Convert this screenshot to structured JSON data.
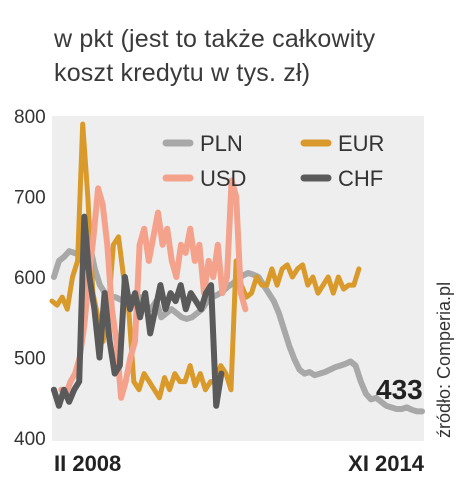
{
  "title": {
    "line1": "w pkt (jest to także całkowity",
    "line2": "koszt kredytu w tys. zł)"
  },
  "source": "źródło: Comperia.pl",
  "end_value_label": "433",
  "chart_data": {
    "type": "line",
    "title": "w pkt (jest to także całkowity koszt kredytu w tys. zł)",
    "xlabel": "",
    "ylabel": "",
    "ylim": [
      400,
      800
    ],
    "yticks": [
      "800",
      "700",
      "600",
      "500",
      "400"
    ],
    "x_start_label": "II 2008",
    "x_end_label": "XI 2014",
    "grid": false,
    "legend_position": "top-right",
    "colors": {
      "PLN": "#a8a8a8",
      "USD": "#f4a28c",
      "EUR": "#d99a2b",
      "CHF": "#5a5a5a",
      "panel": "#eeeeee"
    },
    "series": [
      {
        "name": "PLN",
        "values": [
          600,
          620,
          625,
          632,
          630,
          628,
          660,
          640,
          610,
          590,
          580,
          575,
          575,
          572,
          570,
          575,
          570,
          575,
          565,
          560,
          570,
          550,
          555,
          560,
          555,
          550,
          548,
          550,
          555,
          560,
          570,
          575,
          578,
          582,
          588,
          592,
          598,
          602,
          605,
          603,
          600,
          590,
          580,
          570,
          555,
          535,
          515,
          498,
          485,
          480,
          482,
          478,
          480,
          482,
          485,
          488,
          490,
          492,
          495,
          490,
          470,
          455,
          448,
          450,
          445,
          440,
          438,
          436,
          436,
          438,
          435,
          433,
          433
        ],
        "end_value": 433
      },
      {
        "name": "USD",
        "values": [
          460,
          455,
          470,
          480,
          500,
          540,
          600,
          650,
          710,
          690,
          640,
          560,
          520,
          450,
          470,
          500,
          520,
          640,
          660,
          620,
          650,
          680,
          640,
          660,
          620,
          600,
          640,
          630,
          660,
          620,
          640,
          580,
          620,
          600,
          640,
          580,
          600,
          720,
          700,
          580,
          560
        ]
      },
      {
        "name": "EUR",
        "values": [
          570,
          565,
          575,
          560,
          600,
          620,
          790,
          700,
          580,
          550,
          520,
          560,
          640,
          650,
          600,
          560,
          470,
          460,
          480,
          470,
          460,
          450,
          475,
          460,
          480,
          470,
          470,
          490,
          465,
          480,
          460,
          470,
          470,
          490,
          480,
          460,
          620,
          590,
          575,
          580,
          600,
          590,
          590,
          610,
          590,
          610,
          615,
          600,
          610,
          615,
          590,
          600,
          580,
          590,
          600,
          580,
          600,
          585,
          590,
          590,
          610
        ]
      },
      {
        "name": "CHF",
        "values": [
          460,
          440,
          460,
          445,
          460,
          470,
          675,
          600,
          560,
          500,
          580,
          520,
          480,
          490,
          600,
          560,
          580,
          550,
          580,
          530,
          560,
          590,
          560,
          580,
          570,
          590,
          560,
          580,
          570,
          560,
          580,
          590,
          440,
          480
        ]
      }
    ],
    "legend": [
      {
        "name": "PLN"
      },
      {
        "name": "USD"
      },
      {
        "name": "EUR"
      },
      {
        "name": "CHF"
      }
    ]
  }
}
